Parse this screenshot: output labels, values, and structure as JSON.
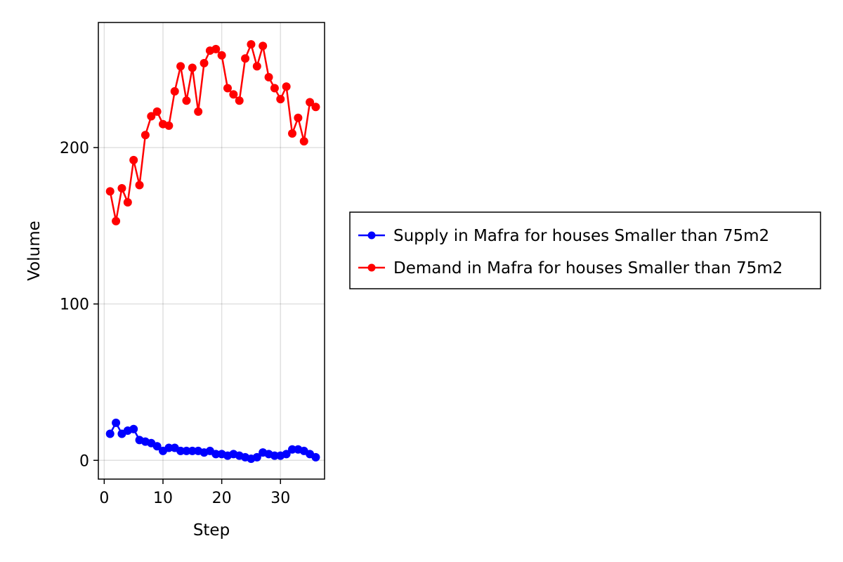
{
  "chart_data": {
    "type": "line",
    "title": "",
    "xlabel": "Step",
    "ylabel": "Volume",
    "xlim": [
      -1,
      37.5
    ],
    "ylim": [
      -12,
      280
    ],
    "xticks": [
      0,
      10,
      20,
      30
    ],
    "yticks": [
      0,
      100,
      200
    ],
    "grid": true,
    "legend_position": "right",
    "markers": true,
    "x": [
      1,
      2,
      3,
      4,
      5,
      6,
      7,
      8,
      9,
      10,
      11,
      12,
      13,
      14,
      15,
      16,
      17,
      18,
      19,
      20,
      21,
      22,
      23,
      24,
      25,
      26,
      27,
      28,
      29,
      30,
      31,
      32,
      33,
      34,
      35,
      36
    ],
    "series": [
      {
        "name": "Supply in Mafra for houses Smaller than 75m2",
        "color": "#0000ff",
        "values": [
          17,
          24,
          17,
          19,
          20,
          13,
          12,
          11,
          9,
          6,
          8,
          8,
          6,
          6,
          6,
          6,
          5,
          6,
          4,
          4,
          3,
          4,
          3,
          2,
          1,
          2,
          5,
          4,
          3,
          3,
          4,
          7,
          7,
          6,
          4,
          2
        ]
      },
      {
        "name": "Demand in Mafra for houses Smaller than 75m2",
        "color": "#ff0000",
        "values": [
          172,
          153,
          174,
          165,
          192,
          176,
          208,
          220,
          223,
          215,
          214,
          236,
          252,
          230,
          251,
          223,
          254,
          262,
          263,
          259,
          238,
          234,
          230,
          257,
          266,
          252,
          265,
          245,
          238,
          231,
          239,
          209,
          219,
          204,
          229,
          226
        ]
      }
    ]
  }
}
